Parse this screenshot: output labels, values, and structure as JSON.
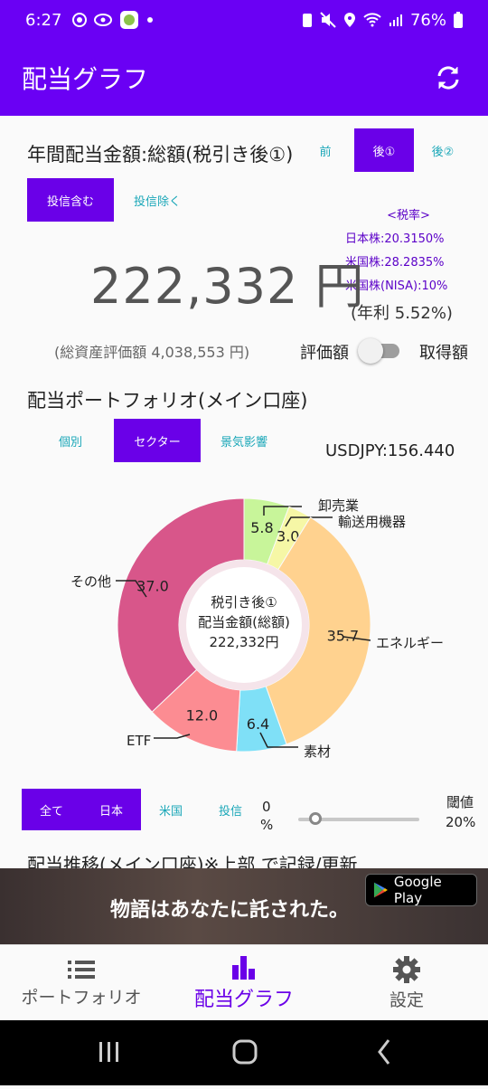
{
  "status_bar": {
    "time": "6:27",
    "battery": "76%",
    "icons": [
      "chrome-icon",
      "eye-icon",
      "app-icon",
      "dot-icon",
      "battery-saver-icon",
      "mute-icon",
      "location-icon",
      "wifi-icon",
      "signal-icon",
      "battery-icon"
    ]
  },
  "app_bar": {
    "title": "配当グラフ",
    "refresh_icon": "refresh-icon"
  },
  "annual": {
    "title": "年間配当金額:総額(税引き後①)",
    "tax_tabs": [
      {
        "label": "前",
        "active": false
      },
      {
        "label": "後①",
        "active": true
      },
      {
        "label": "後②",
        "active": false
      }
    ],
    "fund_tabs": [
      {
        "label": "投信含む",
        "active": true
      },
      {
        "label": "投信除く",
        "active": false
      }
    ],
    "tax_rate": {
      "header": "<税率>",
      "jp": "日本株:20.3150%",
      "us": "米国株:28.2835%",
      "us_nisa": "米国株(NISA):10%"
    },
    "amount": "222,332 円",
    "yield": "(年利 5.52%)",
    "total_assets": "(総資産評価額 4,038,553 円)",
    "toggle_left": "評価額",
    "toggle_right": "取得額"
  },
  "portfolio": {
    "title": "配当ポートフォリオ(メイン口座)",
    "tabs": [
      {
        "label": "個別",
        "active": false
      },
      {
        "label": "セクター",
        "active": true
      },
      {
        "label": "景気影響",
        "active": false
      }
    ],
    "fx": "USDJPY:156.440"
  },
  "chart_data": {
    "type": "pie",
    "center_label": [
      "税引き後①",
      "配当金額(総額)",
      "222,332円"
    ],
    "slices": [
      {
        "label": "卸売業",
        "value": 5.8,
        "color": "#c8f59a"
      },
      {
        "label": "輸送用機器",
        "value": 3.0,
        "color": "#f6f7a6"
      },
      {
        "label": "エネルギー",
        "value": 35.7,
        "color": "#ffd28f"
      },
      {
        "label": "素材",
        "value": 6.4,
        "color": "#7fe0f7"
      },
      {
        "label": "ETF",
        "value": 12.0,
        "color": "#fc8c92"
      },
      {
        "label": "その他",
        "value": 37.0,
        "color": "#d8568a"
      }
    ]
  },
  "filter": {
    "tabs": [
      {
        "label": "全て",
        "active": true
      },
      {
        "label": "日本",
        "active": true
      },
      {
        "label": "米国",
        "active": false
      },
      {
        "label": "投信",
        "active": false
      }
    ],
    "min_label": "0",
    "min_unit": "%",
    "threshold_label": "閾値",
    "threshold_value": "20%",
    "slider_value": 0
  },
  "cut_title": "配当推移(メイン口座)※上部 で記録/更新",
  "ad": {
    "copy": "物語はあなたに託された。",
    "store": "Google Play"
  },
  "bottom_nav": [
    {
      "label": "ポートフォリオ",
      "icon": "list-icon",
      "active": false
    },
    {
      "label": "配当グラフ",
      "icon": "bar-chart-icon",
      "active": true
    },
    {
      "label": "設定",
      "icon": "gear-icon",
      "active": false
    }
  ]
}
